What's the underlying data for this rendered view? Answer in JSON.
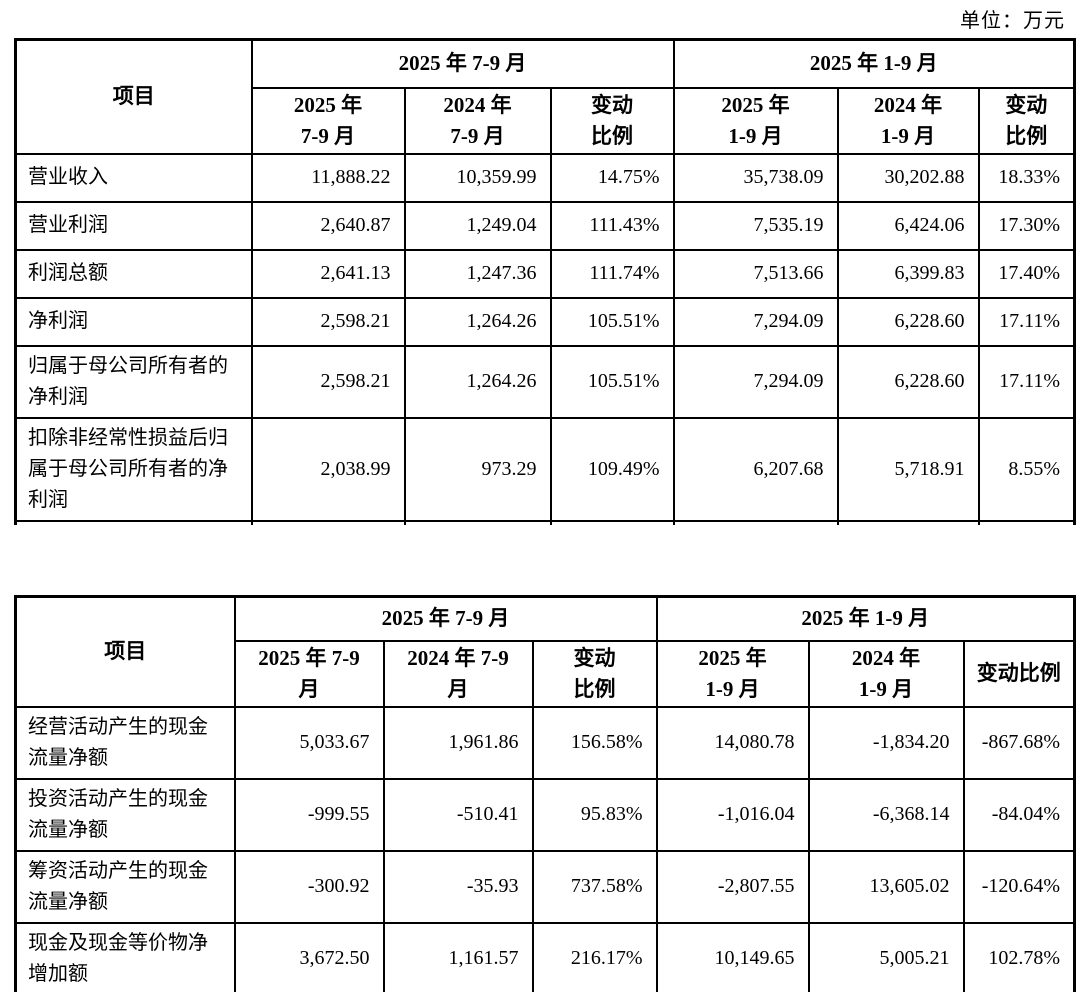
{
  "unit_label": "单位：万元",
  "colors": {
    "text": "#000000",
    "border": "#000000",
    "background": "#ffffff"
  },
  "tables": [
    {
      "name": "operating-results",
      "item_header": "项目",
      "group_headers": [
        "2025 年 7-9 月",
        "2025 年 1-9 月"
      ],
      "sub_headers": [
        "2025 年\n7-9 月",
        "2024 年\n7-9 月",
        "变动\n比例",
        "2025 年\n1-9 月",
        "2024 年\n1-9 月",
        "变动\n比例"
      ],
      "rows": [
        {
          "key": "revenue",
          "label": "营业收入",
          "values": [
            "11,888.22",
            "10,359.99",
            "14.75%",
            "35,738.09",
            "30,202.88",
            "18.33%"
          ]
        },
        {
          "key": "operating-profit",
          "label": "营业利润",
          "values": [
            "2,640.87",
            "1,249.04",
            "111.43%",
            "7,535.19",
            "6,424.06",
            "17.30%"
          ]
        },
        {
          "key": "total-profit",
          "label": "利润总额",
          "values": [
            "2,641.13",
            "1,247.36",
            "111.74%",
            "7,513.66",
            "6,399.83",
            "17.40%"
          ]
        },
        {
          "key": "net-profit",
          "label": "净利润",
          "values": [
            "2,598.21",
            "1,264.26",
            "105.51%",
            "7,294.09",
            "6,228.60",
            "17.11%"
          ]
        },
        {
          "key": "net-profit-parent",
          "label": "归属于母公司所有者的净利润",
          "values": [
            "2,598.21",
            "1,264.26",
            "105.51%",
            "7,294.09",
            "6,228.60",
            "17.11%"
          ]
        },
        {
          "key": "deducted-net-profit-parent",
          "label": "扣除非经常性损益后归属于母公司所有者的净利润",
          "values": [
            "2,038.99",
            "973.29",
            "109.49%",
            "6,207.68",
            "5,718.91",
            "8.55%"
          ]
        }
      ]
    },
    {
      "name": "cash-flows",
      "item_header": "项目",
      "group_headers": [
        "2025 年 7-9 月",
        "2025 年 1-9 月"
      ],
      "sub_headers": [
        "2025 年 7-9\n月",
        "2024 年 7-9\n月",
        "变动\n比例",
        "2025 年\n1-9 月",
        "2024 年\n1-9 月",
        "变动比例"
      ],
      "rows": [
        {
          "key": "operating-cashflow",
          "label": "经营活动产生的现金流量净额",
          "values": [
            "5,033.67",
            "1,961.86",
            "156.58%",
            "14,080.78",
            "-1,834.20",
            "-867.68%"
          ]
        },
        {
          "key": "investing-cashflow",
          "label": "投资活动产生的现金流量净额",
          "values": [
            "-999.55",
            "-510.41",
            "95.83%",
            "-1,016.04",
            "-6,368.14",
            "-84.04%"
          ]
        },
        {
          "key": "financing-cashflow",
          "label": "筹资活动产生的现金流量净额",
          "values": [
            "-300.92",
            "-35.93",
            "737.58%",
            "-2,807.55",
            "13,605.02",
            "-120.64%"
          ]
        },
        {
          "key": "net-increase-cash",
          "label": "现金及现金等价物净增加额",
          "values": [
            "3,672.50",
            "1,161.57",
            "216.17%",
            "10,149.65",
            "5,005.21",
            "102.78%"
          ]
        }
      ]
    }
  ]
}
